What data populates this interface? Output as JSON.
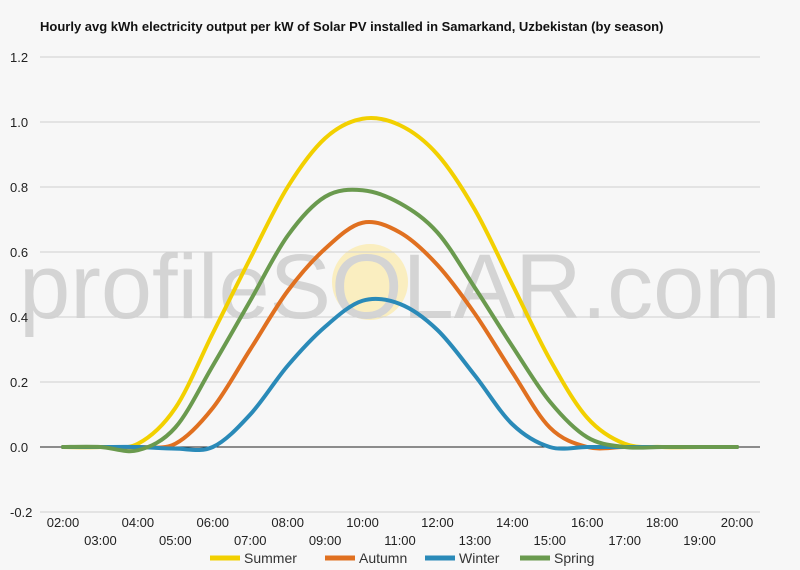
{
  "chart_data": {
    "type": "line",
    "title": "Hourly avg kWh electricity output per kW of Solar PV installed in Samarkand, Uzbekistan (by season)",
    "xlabel": "",
    "ylabel": "",
    "categories": [
      "02:00",
      "03:00",
      "04:00",
      "05:00",
      "06:00",
      "07:00",
      "08:00",
      "09:00",
      "10:00",
      "11:00",
      "12:00",
      "13:00",
      "14:00",
      "15:00",
      "16:00",
      "17:00",
      "18:00",
      "19:00",
      "20:00"
    ],
    "ylim": [
      -0.2,
      1.2
    ],
    "yticks": [
      "-0.2",
      "0.0",
      "0.2",
      "0.4",
      "0.6",
      "0.8",
      "1.0",
      "1.2"
    ],
    "grid": true,
    "legend": "bottom",
    "series": [
      {
        "name": "Summer",
        "color": "#f2d000",
        "values": [
          0,
          0,
          0.01,
          0.12,
          0.35,
          0.58,
          0.8,
          0.95,
          1.01,
          0.99,
          0.9,
          0.73,
          0.5,
          0.27,
          0.09,
          0.01,
          0,
          0,
          0
        ]
      },
      {
        "name": "Autumn",
        "color": "#e07020",
        "values": [
          0,
          0,
          0,
          0.01,
          0.12,
          0.3,
          0.48,
          0.61,
          0.69,
          0.66,
          0.56,
          0.41,
          0.23,
          0.06,
          0,
          0,
          0,
          0,
          0
        ]
      },
      {
        "name": "Winter",
        "color": "#2a8ab8",
        "values": [
          0,
          0,
          0,
          -0.005,
          0,
          0.1,
          0.25,
          0.37,
          0.45,
          0.44,
          0.36,
          0.22,
          0.07,
          0,
          0,
          0,
          0,
          0,
          0
        ]
      },
      {
        "name": "Spring",
        "color": "#6a9a4e",
        "values": [
          0,
          0,
          -0.01,
          0.06,
          0.25,
          0.45,
          0.65,
          0.77,
          0.79,
          0.75,
          0.66,
          0.49,
          0.31,
          0.14,
          0.03,
          0,
          0,
          0,
          0
        ]
      }
    ]
  },
  "watermark": "profileSOLAR.com"
}
